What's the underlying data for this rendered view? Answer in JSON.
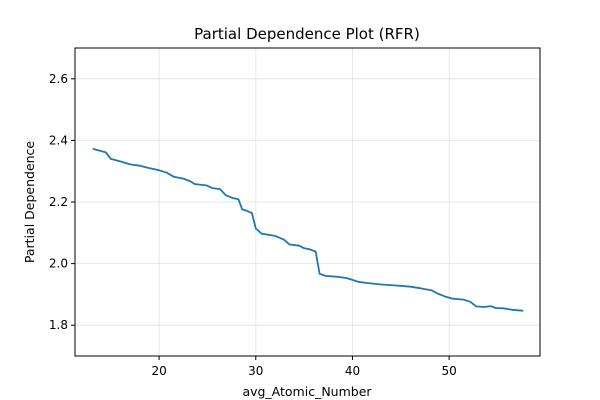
{
  "chart_data": {
    "type": "line",
    "title": "Partial Dependence Plot (RFR)",
    "xlabel": "avg_Atomic_Number",
    "ylabel": "Partial Dependence",
    "xlim": [
      11.3,
      59.4
    ],
    "ylim": [
      1.7,
      2.7
    ],
    "xticks": [
      20,
      30,
      40,
      50
    ],
    "yticks": [
      1.8,
      2.0,
      2.2,
      2.4,
      2.6
    ],
    "xtick_labels": [
      "20",
      "30",
      "40",
      "50"
    ],
    "ytick_labels": [
      "1.8",
      "2.0",
      "2.2",
      "2.4",
      "2.6"
    ],
    "grid": true,
    "legend": "none",
    "series": [
      {
        "color": "#1f77b4",
        "x": [
          13.2,
          14.5,
          15.0,
          16.2,
          17.0,
          18.0,
          19.0,
          20.0,
          20.8,
          21.5,
          22.5,
          23.2,
          23.7,
          24.9,
          25.5,
          26.3,
          26.9,
          27.6,
          28.2,
          28.6,
          29.1,
          29.6,
          30.0,
          30.6,
          32.0,
          32.9,
          33.5,
          34.5,
          35.0,
          35.5,
          36.2,
          36.6,
          37.2,
          38.5,
          39.4,
          40.0,
          40.6,
          41.5,
          43.0,
          44.5,
          46.0,
          47.0,
          48.2,
          48.8,
          49.6,
          50.4,
          51.5,
          52.2,
          52.8,
          53.6,
          54.3,
          54.8,
          55.6,
          56.5,
          57.6
        ],
        "y": [
          2.372,
          2.361,
          2.34,
          2.33,
          2.322,
          2.318,
          2.31,
          2.303,
          2.295,
          2.282,
          2.276,
          2.268,
          2.258,
          2.254,
          2.245,
          2.242,
          2.222,
          2.213,
          2.209,
          2.176,
          2.171,
          2.164,
          2.114,
          2.097,
          2.09,
          2.078,
          2.062,
          2.058,
          2.05,
          2.047,
          2.039,
          1.967,
          1.96,
          1.957,
          1.953,
          1.947,
          1.941,
          1.937,
          1.932,
          1.929,
          1.925,
          1.92,
          1.913,
          1.903,
          1.893,
          1.886,
          1.883,
          1.876,
          1.861,
          1.859,
          1.862,
          1.856,
          1.855,
          1.85,
          1.847
        ]
      }
    ]
  }
}
